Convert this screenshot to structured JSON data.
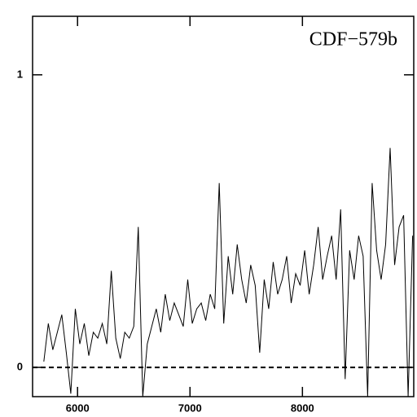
{
  "chart_data": {
    "type": "line",
    "title": "CDF−579b",
    "x": [
      5700,
      5740,
      5780,
      5820,
      5860,
      5900,
      5940,
      5980,
      6020,
      6060,
      6100,
      6140,
      6180,
      6220,
      6260,
      6300,
      6340,
      6380,
      6420,
      6460,
      6500,
      6540,
      6580,
      6620,
      6660,
      6700,
      6740,
      6780,
      6820,
      6860,
      6900,
      6940,
      6980,
      7020,
      7060,
      7100,
      7140,
      7180,
      7220,
      7260,
      7300,
      7340,
      7380,
      7420,
      7460,
      7500,
      7540,
      7580,
      7620,
      7660,
      7700,
      7740,
      7780,
      7820,
      7860,
      7900,
      7940,
      7980,
      8020,
      8060,
      8100,
      8140,
      8180,
      8220,
      8260,
      8300,
      8340,
      8380,
      8420,
      8460,
      8500,
      8540,
      8580,
      8620,
      8660,
      8700,
      8740,
      8780,
      8820,
      8860,
      8900,
      8940,
      8980
    ],
    "values": [
      0.02,
      0.15,
      0.06,
      0.12,
      0.18,
      0.05,
      -0.09,
      0.2,
      0.08,
      0.15,
      0.04,
      0.12,
      0.1,
      0.15,
      0.08,
      0.33,
      0.1,
      0.03,
      0.12,
      0.1,
      0.14,
      0.48,
      -0.1,
      0.08,
      0.14,
      0.2,
      0.12,
      0.25,
      0.16,
      0.22,
      0.18,
      0.14,
      0.3,
      0.15,
      0.2,
      0.22,
      0.16,
      0.25,
      0.2,
      0.63,
      0.15,
      0.38,
      0.25,
      0.42,
      0.3,
      0.22,
      0.35,
      0.28,
      0.05,
      0.3,
      0.2,
      0.36,
      0.25,
      0.3,
      0.38,
      0.22,
      0.32,
      0.28,
      0.4,
      0.25,
      0.35,
      0.48,
      0.3,
      0.38,
      0.45,
      0.3,
      0.54,
      -0.04,
      0.4,
      0.3,
      0.45,
      0.38,
      -0.1,
      0.63,
      0.4,
      0.3,
      0.42,
      0.75,
      0.35,
      0.48,
      0.52,
      -0.1,
      0.45
    ],
    "color": "#000000",
    "xlim": [
      5600,
      8990
    ],
    "ylim": [
      -0.1,
      1.2
    ],
    "xticks": [
      6000,
      7000,
      8000
    ],
    "yticks": [
      0,
      1
    ],
    "reference_line": 0
  }
}
